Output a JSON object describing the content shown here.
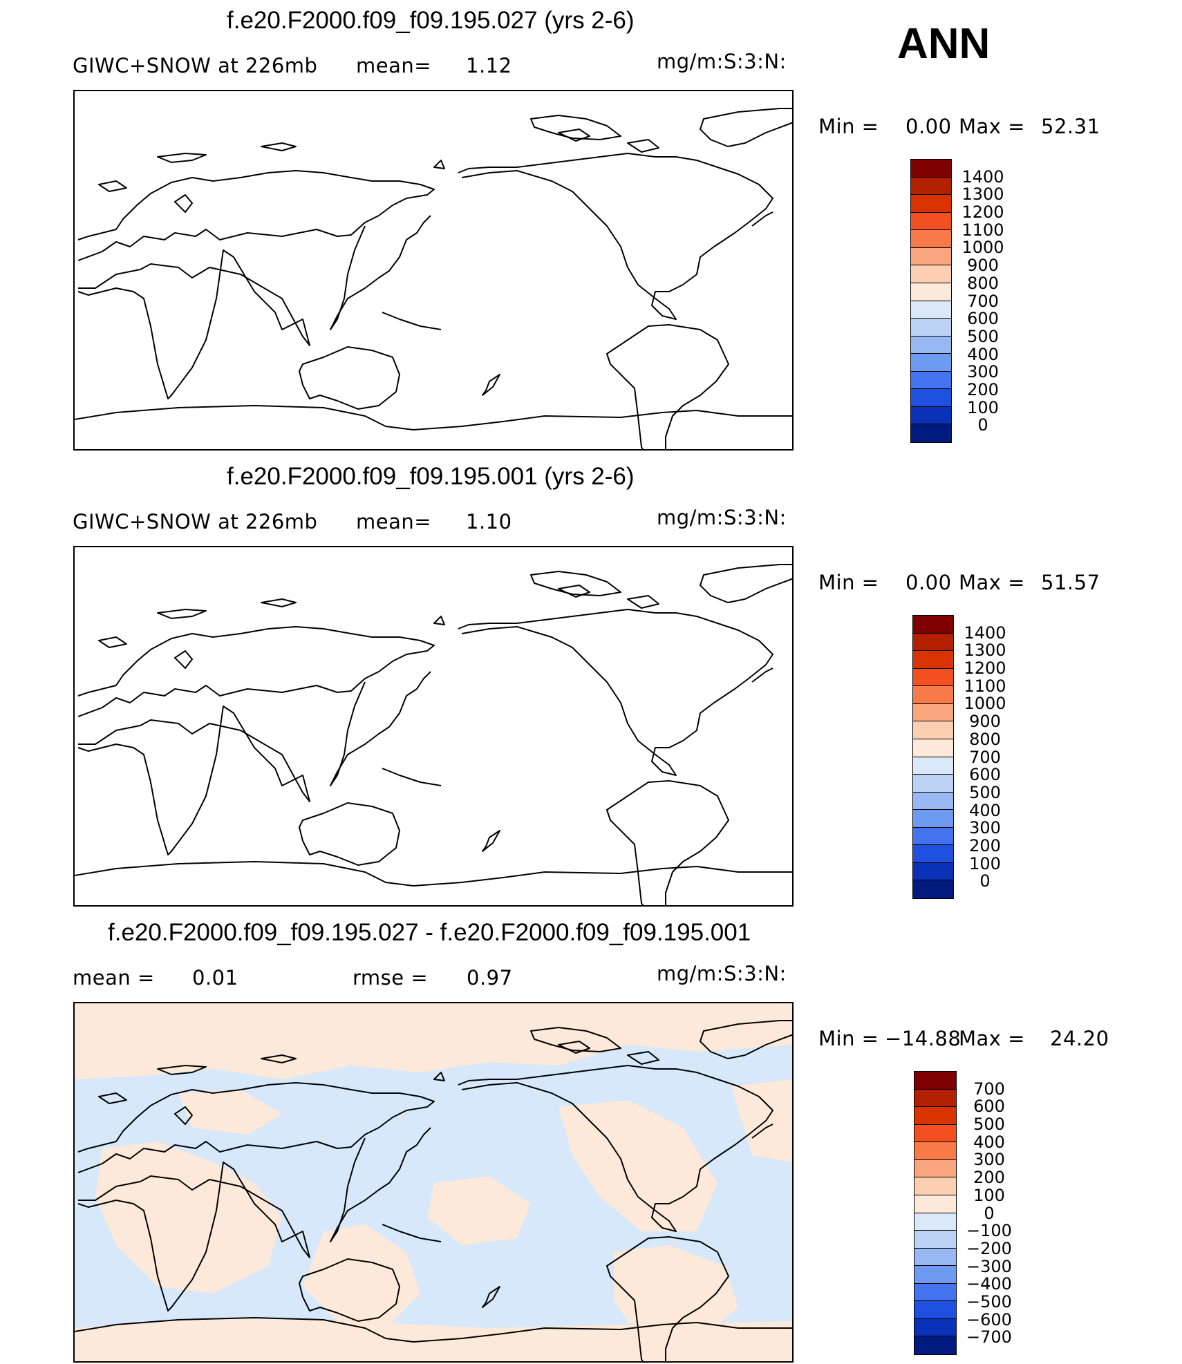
{
  "header": {
    "season": "ANN"
  },
  "panels": [
    {
      "id": "top",
      "title": "f.e20.F2000.f09_f09.195.027 (yrs 2-6)",
      "variable": "GIWC+SNOW at 226mb",
      "stat1_label": "mean=",
      "stat1_value": "1.12",
      "stat2_label": "",
      "stat2_value": "",
      "units": "mg/m:S:3:N:",
      "min_label": "Min =",
      "min_value": "0.00",
      "max_label": "Max =",
      "max_value": "52.31",
      "colorbar": {
        "labels": [
          "1400",
          "1300",
          "1200",
          "1100",
          "1000",
          "900",
          "800",
          "700",
          "600",
          "500",
          "400",
          "300",
          "200",
          "100",
          "0"
        ],
        "colors": [
          "#7f0000",
          "#b22000",
          "#d93400",
          "#f25020",
          "#f77a48",
          "#f9a57e",
          "#fcceb2",
          "#fde9d9",
          "#dbe8f7",
          "#bcd2f4",
          "#97b8f3",
          "#6e9bf1",
          "#4373ee",
          "#2050e0",
          "#0a32b8",
          "#001a80"
        ]
      }
    },
    {
      "id": "middle",
      "title": "f.e20.F2000.f09_f09.195.001 (yrs 2-6)",
      "variable": "GIWC+SNOW at 226mb",
      "stat1_label": "mean=",
      "stat1_value": "1.10",
      "stat2_label": "",
      "stat2_value": "",
      "units": "mg/m:S:3:N:",
      "min_label": "Min =",
      "min_value": "0.00",
      "max_label": "Max =",
      "max_value": "51.57",
      "colorbar": {
        "labels": [
          "1400",
          "1300",
          "1200",
          "1100",
          "1000",
          "900",
          "800",
          "700",
          "600",
          "500",
          "400",
          "300",
          "200",
          "100",
          "0"
        ],
        "colors": [
          "#7f0000",
          "#b22000",
          "#d93400",
          "#f25020",
          "#f77a48",
          "#f9a57e",
          "#fcceb2",
          "#fde9d9",
          "#dbe8f7",
          "#bcd2f4",
          "#97b8f3",
          "#6e9bf1",
          "#4373ee",
          "#2050e0",
          "#0a32b8",
          "#001a80"
        ]
      }
    },
    {
      "id": "bottom",
      "title": "f.e20.F2000.f09_f09.195.027 - f.e20.F2000.f09_f09.195.001",
      "variable": "",
      "stat1_label": "mean =",
      "stat1_value": "0.01",
      "stat2_label": "rmse =",
      "stat2_value": "0.97",
      "units": "mg/m:S:3:N:",
      "min_label": "Min =",
      "min_value": "−14.88",
      "max_label": "Max =",
      "max_value": "24.20",
      "colorbar": {
        "labels": [
          "700",
          "600",
          "500",
          "400",
          "300",
          "200",
          "100",
          "0",
          "−100",
          "−200",
          "−300",
          "−400",
          "−500",
          "−600",
          "−700"
        ],
        "colors": [
          "#7f0000",
          "#b22000",
          "#d93400",
          "#f25020",
          "#f77a48",
          "#f9a57e",
          "#fcceb2",
          "#fde9d9",
          "#dbe8f7",
          "#bcd2f4",
          "#97b8f3",
          "#6e9bf1",
          "#4373ee",
          "#2050e0",
          "#0a32b8",
          "#001a80"
        ]
      }
    }
  ],
  "map_fill": {
    "positive_color": "#fde9d9",
    "negative_color": "#d6e8fa"
  }
}
